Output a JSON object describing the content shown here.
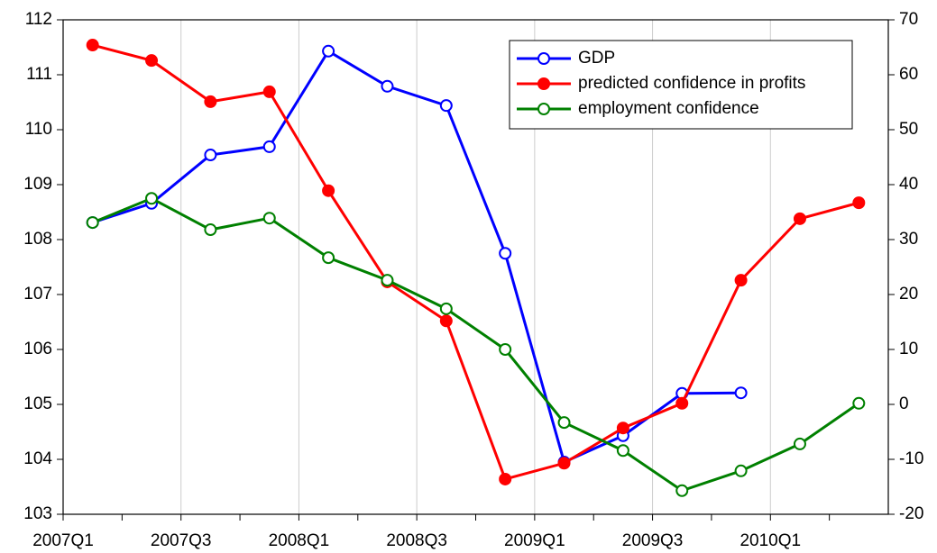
{
  "chart_data": {
    "type": "line",
    "categories": [
      "2007Q1",
      null,
      "2007Q3",
      null,
      "2008Q1",
      null,
      "2008Q3",
      null,
      "2009Q1",
      null,
      "2009Q3",
      null,
      "2010Q1",
      null
    ],
    "ylim": [
      103,
      112
    ],
    "yticks": [
      103,
      104,
      105,
      106,
      107,
      108,
      109,
      110,
      111,
      112
    ],
    "y2lim": [
      -20,
      70
    ],
    "y2ticks": [
      -20,
      -10,
      0,
      10,
      20,
      30,
      40,
      50,
      60,
      70
    ],
    "grid": true,
    "legend": "top-right",
    "series": [
      {
        "name": "GDP",
        "color": "#0000ff",
        "filled": false,
        "values": [
          108.31,
          108.66,
          109.54,
          109.69,
          111.43,
          110.79,
          110.44,
          107.75,
          103.95,
          104.43,
          105.2,
          105.21,
          null,
          null
        ]
      },
      {
        "name": "predicted confidence in profits",
        "color": "#ff0000",
        "filled": true,
        "axis": "y2",
        "values": [
          65.4,
          62.6,
          55.1,
          56.9,
          38.9,
          22.3,
          15.2,
          -13.6,
          -10.7,
          -4.3,
          0.2,
          22.6,
          33.8,
          36.7
        ]
      },
      {
        "name": "employment confidence",
        "color": "#008000",
        "filled": false,
        "axis": "y2",
        "values": [
          33.1,
          37.5,
          31.8,
          33.9,
          26.7,
          22.6,
          17.4,
          10.0,
          -3.3,
          -8.4,
          -15.7,
          -12.1,
          -7.2,
          0.2
        ]
      }
    ]
  }
}
